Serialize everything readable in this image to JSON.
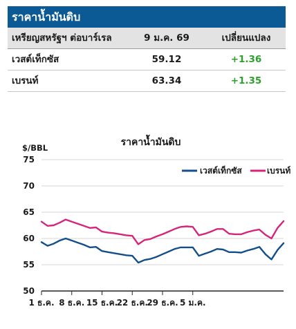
{
  "panel": {
    "title": "ราคาน้ำมันดิบ",
    "header": {
      "col1": "เหรียญสหรัฐฯ ต่อบาร์เรล",
      "col2": "9 ม.ค. 69",
      "col3": "เปลี่ยนแปลง"
    },
    "rows": [
      {
        "name": "เวสต์เท็กซัส",
        "price": "59.12",
        "change": "+1.36"
      },
      {
        "name": "เบรนท์",
        "price": "63.34",
        "change": "+1.35"
      }
    ]
  },
  "colors": {
    "title_bar": "#0b5a95",
    "header_bg": "#e3e3e3",
    "change_positive": "#2aa12a",
    "series_wti": "#124f8a",
    "series_brent": "#d6247b"
  },
  "chart_data": {
    "type": "line",
    "title": "ราคาน้ำมันดิบ",
    "ylabel": "$/BBL",
    "ylim": [
      50,
      75
    ],
    "yticks": [
      50,
      55,
      60,
      65,
      70,
      75
    ],
    "x_tick_labels": [
      "1 ธ.ค.",
      "8 ธ.ค.",
      "15 ธ.ค.",
      "22 ธ.ค.",
      "29 ธ.ค.",
      "5 ม.ค."
    ],
    "x_tick_index": [
      0,
      5,
      10,
      15,
      20,
      25
    ],
    "legend": "top-right",
    "grid": "horizontal",
    "series": [
      {
        "name": "เวสต์เท็กซัส",
        "color": "#124f8a",
        "values": [
          59.3,
          58.6,
          59.0,
          59.6,
          60.0,
          59.6,
          59.2,
          58.8,
          58.3,
          58.4,
          57.6,
          57.4,
          57.2,
          57.0,
          56.8,
          56.7,
          55.4,
          55.9,
          56.1,
          56.5,
          57.0,
          57.5,
          58.0,
          58.3,
          58.3,
          58.3,
          56.7,
          57.1,
          57.5,
          58.0,
          57.9,
          57.4,
          57.4,
          57.3,
          57.7,
          58.0,
          58.4,
          57.0,
          56.0,
          57.8,
          59.1
        ]
      },
      {
        "name": "เบรนท์",
        "color": "#d6247b",
        "values": [
          63.2,
          62.4,
          62.5,
          63.0,
          63.6,
          63.2,
          62.8,
          62.4,
          62.0,
          62.1,
          61.3,
          61.1,
          61.0,
          60.8,
          60.6,
          60.5,
          58.9,
          59.7,
          59.9,
          60.4,
          60.8,
          61.3,
          61.8,
          62.2,
          62.3,
          62.2,
          60.6,
          60.9,
          61.3,
          61.8,
          61.8,
          60.9,
          60.8,
          60.8,
          61.2,
          61.5,
          61.7,
          60.7,
          60.0,
          62.0,
          63.3
        ]
      }
    ]
  }
}
